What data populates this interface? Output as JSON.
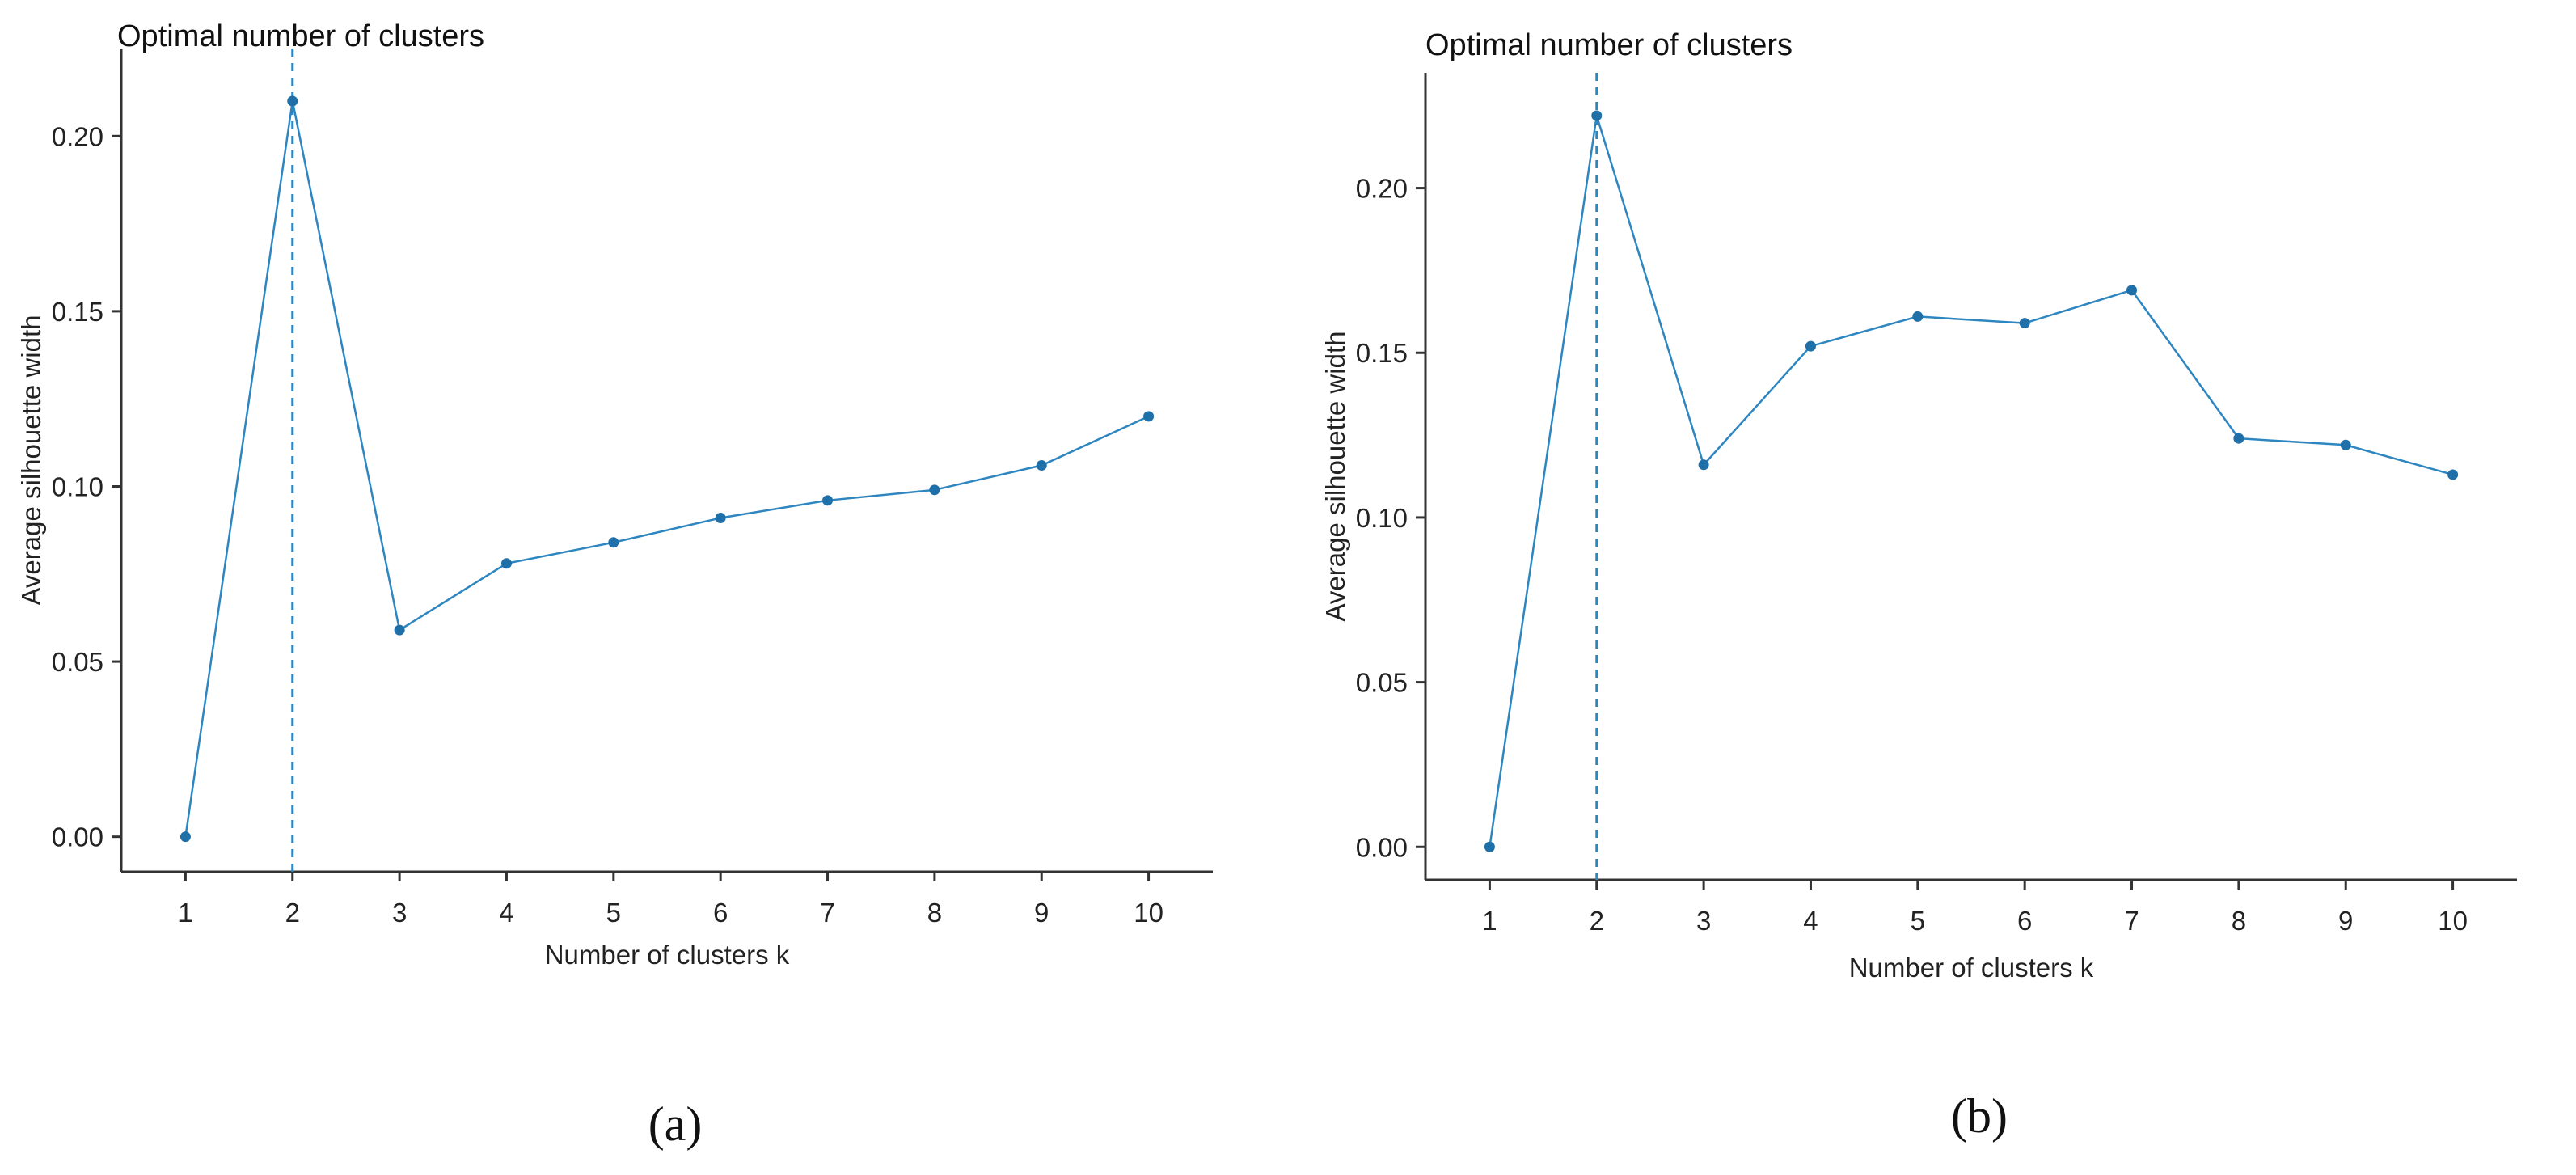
{
  "chart_data": [
    {
      "type": "line",
      "panel_label": "(a)",
      "title": "Optimal number of clusters",
      "xlabel": "Number of clusters k",
      "ylabel": "Average silhouette width",
      "categories": [
        "1",
        "2",
        "3",
        "4",
        "5",
        "6",
        "7",
        "8",
        "9",
        "10"
      ],
      "x": [
        1,
        2,
        3,
        4,
        5,
        6,
        7,
        8,
        9,
        10
      ],
      "values": [
        0.0,
        0.21,
        0.059,
        0.078,
        0.084,
        0.091,
        0.096,
        0.099,
        0.106,
        0.12
      ],
      "yticks": [
        0.0,
        0.05,
        0.1,
        0.15,
        0.2
      ],
      "ytick_labels": [
        "0.00",
        "0.05",
        "0.10",
        "0.15",
        "0.20"
      ],
      "ylim": [
        -0.01,
        0.225
      ],
      "optimal_k": 2,
      "color": "#2e86c1",
      "grid": false
    },
    {
      "type": "line",
      "panel_label": "(b)",
      "title": "Optimal number of clusters",
      "xlabel": "Number of clusters k",
      "ylabel": "Average silhouette width",
      "categories": [
        "1",
        "2",
        "3",
        "4",
        "5",
        "6",
        "7",
        "8",
        "9",
        "10"
      ],
      "x": [
        1,
        2,
        3,
        4,
        5,
        6,
        7,
        8,
        9,
        10
      ],
      "values": [
        0.0,
        0.222,
        0.116,
        0.152,
        0.161,
        0.159,
        0.169,
        0.124,
        0.122,
        0.113
      ],
      "yticks": [
        0.0,
        0.05,
        0.1,
        0.15,
        0.2
      ],
      "ytick_labels": [
        "0.00",
        "0.05",
        "0.10",
        "0.15",
        "0.20"
      ],
      "ylim": [
        -0.01,
        0.235
      ],
      "optimal_k": 2,
      "color": "#2e86c1",
      "grid": false
    }
  ]
}
